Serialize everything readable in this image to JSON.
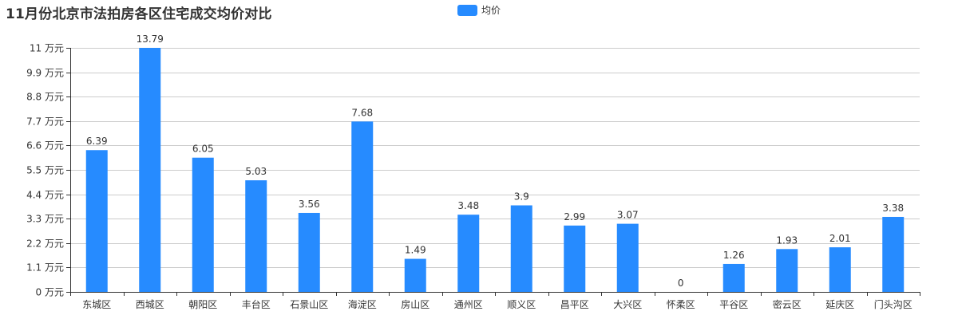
{
  "title": "11月份北京市法拍房各区住宅成交均价对比",
  "legend": {
    "label": "均价",
    "color": "#268bff"
  },
  "colors": {
    "bar": "#268bff",
    "grid": "#cccccc",
    "axis": "#333333",
    "text": "#333333"
  },
  "chart_data": {
    "type": "bar",
    "title": "11月份北京市法拍房各区住宅成交均价对比",
    "xlabel": "",
    "ylabel": "",
    "y_unit": "万元",
    "ylim": [
      0,
      11
    ],
    "yticks": [
      "0 万元",
      "1.1 万元",
      "2.2 万元",
      "3.3 万元",
      "4.4 万元",
      "5.5 万元",
      "6.6 万元",
      "7.7 万元",
      "8.8 万元",
      "9.9 万元",
      "11 万元"
    ],
    "ytick_values": [
      0,
      1.1,
      2.2,
      3.3,
      4.4,
      5.5,
      6.6,
      7.7,
      8.8,
      9.9,
      11
    ],
    "grid": true,
    "legend_position": "top",
    "categories": [
      "东城区",
      "西城区",
      "朝阳区",
      "丰台区",
      "石景山区",
      "海淀区",
      "房山区",
      "通州区",
      "顺义区",
      "昌平区",
      "大兴区",
      "怀柔区",
      "平谷区",
      "密云区",
      "延庆区",
      "门头沟区"
    ],
    "series": [
      {
        "name": "均价",
        "values": [
          6.39,
          13.79,
          6.05,
          5.03,
          3.56,
          7.68,
          1.49,
          3.48,
          3.9,
          2.99,
          3.07,
          0,
          1.26,
          1.93,
          2.01,
          3.38
        ]
      }
    ],
    "value_labels": [
      "6.39",
      "13.79",
      "6.05",
      "5.03",
      "3.56",
      "7.68",
      "1.49",
      "3.48",
      "3.9",
      "2.99",
      "3.07",
      "0",
      "1.26",
      "1.93",
      "2.01",
      "3.38"
    ]
  }
}
